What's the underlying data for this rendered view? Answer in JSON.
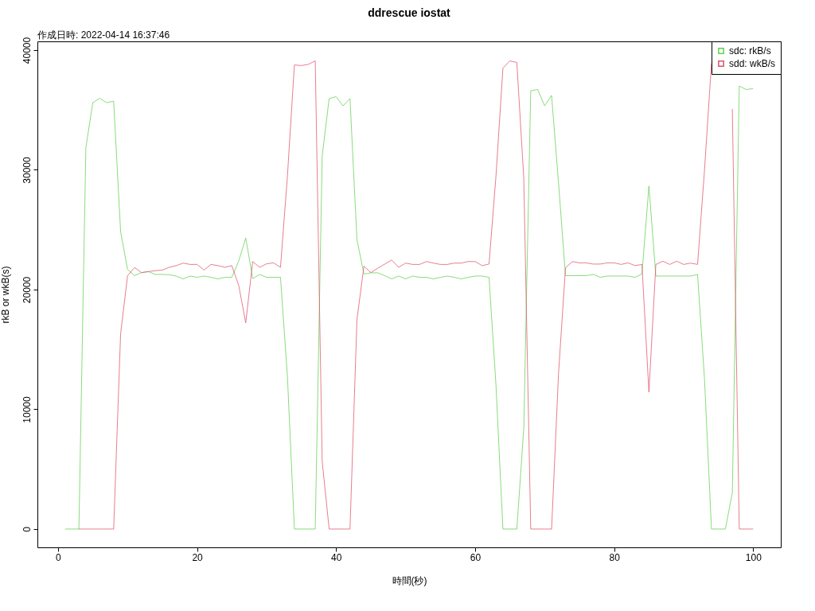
{
  "chart_data": {
    "type": "line",
    "title": "ddrescue iostat",
    "subtitle": "作成日時: 2022-04-14 16:37:46",
    "xlabel": "時間(秒)",
    "ylabel": "rkB or wkB(s)",
    "x": [
      1,
      2,
      3,
      4,
      5,
      6,
      7,
      8,
      9,
      10,
      11,
      12,
      13,
      14,
      15,
      16,
      17,
      18,
      19,
      20,
      21,
      22,
      23,
      24,
      25,
      26,
      27,
      28,
      29,
      30,
      31,
      32,
      33,
      34,
      35,
      36,
      37,
      38,
      39,
      40,
      41,
      42,
      43,
      44,
      45,
      46,
      47,
      48,
      49,
      50,
      51,
      52,
      53,
      54,
      55,
      56,
      57,
      58,
      59,
      60,
      61,
      62,
      63,
      64,
      65,
      66,
      67,
      68,
      69,
      70,
      71,
      72,
      73,
      74,
      75,
      76,
      77,
      78,
      79,
      80,
      81,
      82,
      83,
      84,
      85,
      86,
      87,
      88,
      89,
      90,
      91,
      92,
      93,
      94,
      95,
      96,
      97,
      98,
      99,
      100
    ],
    "series": [
      {
        "name": "sdc: rkB/s",
        "color": "#61d04f",
        "values": [
          0,
          0,
          0,
          31850,
          35610,
          35975,
          35610,
          35740,
          24840,
          21680,
          21160,
          21420,
          21500,
          21265,
          21265,
          21240,
          21130,
          20890,
          21130,
          21025,
          21130,
          21025,
          20890,
          21025,
          21025,
          22400,
          24310,
          20920,
          21265,
          21025,
          21025,
          21025,
          12700,
          0,
          0,
          0,
          0,
          31150,
          35950,
          36110,
          35345,
          35950,
          24180,
          21300,
          21400,
          21400,
          21160,
          20890,
          21130,
          20890,
          21130,
          21025,
          21025,
          20890,
          21025,
          21130,
          21025,
          20890,
          21025,
          21130,
          21130,
          21025,
          12000,
          0,
          0,
          0,
          8400,
          36610,
          36710,
          35345,
          36215,
          28900,
          21160,
          21160,
          21160,
          21160,
          21265,
          21025,
          21130,
          21130,
          21130,
          21130,
          21025,
          21300,
          28650,
          21130,
          21130,
          21130,
          21130,
          21130,
          21130,
          21265,
          12500,
          0,
          0,
          0,
          3030,
          37000,
          36710,
          36790
        ]
      },
      {
        "name": "sdd: wkB/s",
        "color": "#df536b",
        "values": [
          null,
          null,
          0,
          0,
          0,
          0,
          0,
          0,
          16300,
          21160,
          21840,
          21420,
          21500,
          21580,
          21630,
          21860,
          22000,
          22210,
          22100,
          22100,
          21630,
          22100,
          22000,
          21860,
          22000,
          20320,
          17220,
          22340,
          21860,
          22150,
          22230,
          21860,
          29500,
          38760,
          38710,
          38810,
          39100,
          5650,
          0,
          0,
          0,
          0,
          17480,
          21950,
          21420,
          21790,
          22130,
          22470,
          21860,
          22210,
          22100,
          22100,
          22340,
          22210,
          22100,
          22100,
          22210,
          22210,
          22340,
          22340,
          22000,
          22130,
          29500,
          38500,
          39100,
          38970,
          29300,
          0,
          0,
          0,
          0,
          13000,
          21820,
          22340,
          22230,
          22230,
          22130,
          22130,
          22230,
          22230,
          22100,
          22230,
          22000,
          22100,
          11440,
          22100,
          22370,
          22100,
          22370,
          22100,
          22210,
          22100,
          30000,
          38890,
          null,
          null,
          35090,
          0,
          0,
          0
        ]
      }
    ],
    "xlim": [
      -2.97,
      103.97
    ],
    "ylim": [
      -1530,
      40730
    ],
    "xticks": [
      0,
      20,
      40,
      60,
      80,
      100
    ],
    "yticks": [
      0,
      10000,
      20000,
      30000,
      40000
    ],
    "grid": false,
    "legend": "top right",
    "line_style": "solid",
    "marker": "none"
  }
}
